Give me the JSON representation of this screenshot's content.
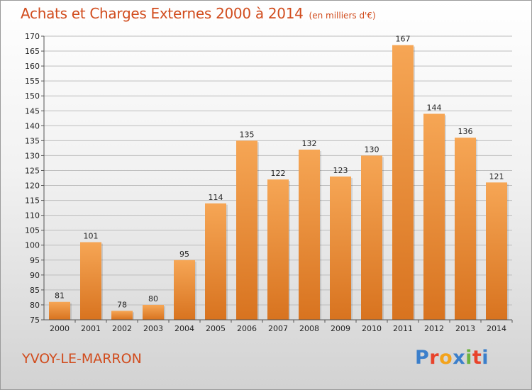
{
  "header": {
    "title": "Achats et Charges Externes 2000 à 2014",
    "subtitle": "(en milliers d'€)"
  },
  "footer": {
    "town": "YVOY-LE-MARRON",
    "brand": "Proxiti",
    "brand_colors": [
      "#3b7fcb",
      "#e8432b",
      "#f3a31c",
      "#3b7fcb",
      "#6db33f",
      "#e8432b",
      "#3b7fcb"
    ]
  },
  "colors": {
    "title": "#d14c1d",
    "bar_top": "#f6a655",
    "bar_bottom": "#d8731f"
  },
  "chart_data": {
    "type": "bar",
    "title": "Achats et Charges Externes 2000 à 2014",
    "subtitle": "(en milliers d'€)",
    "categories": [
      "2000",
      "2001",
      "2002",
      "2003",
      "2004",
      "2005",
      "2006",
      "2007",
      "2008",
      "2009",
      "2010",
      "2011",
      "2012",
      "2013",
      "2014"
    ],
    "values": [
      81,
      101,
      78,
      80,
      95,
      114,
      135,
      122,
      132,
      123,
      130,
      167,
      144,
      136,
      121
    ],
    "ylim": [
      75,
      170
    ],
    "ytick_step": 5,
    "grid": "horizontal",
    "xlabel": "",
    "ylabel": ""
  }
}
